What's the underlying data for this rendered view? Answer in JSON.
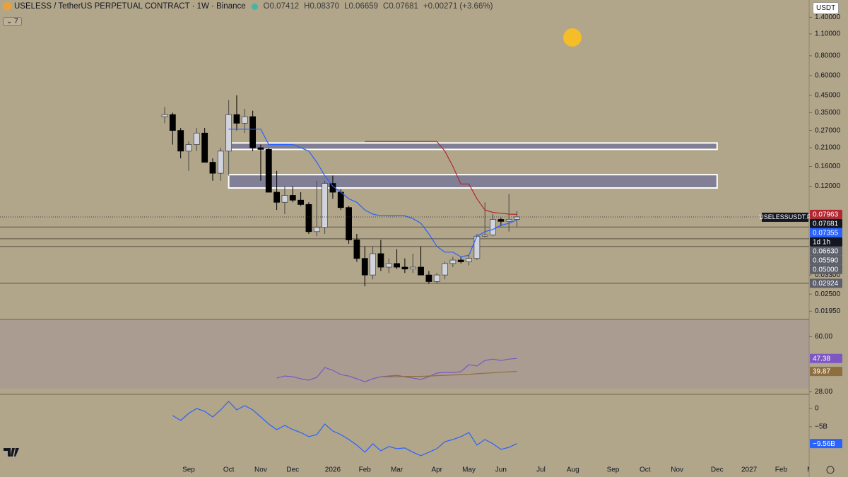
{
  "header": {
    "ohlc": [
      {
        "label": "O",
        "value": "0.07412"
      },
      {
        "label": "H",
        "value": "0.08370"
      },
      {
        "label": "L",
        "value": "0.06659"
      },
      {
        "label": "C",
        "value": "0.07681"
      }
    ],
    "change": "+0.00271 (+3.66%)",
    "currency": "USDT",
    "indicators": "7",
    "ticker": "USELESSUSDT.P",
    "countdown": "1d 1h"
  },
  "chart_data": [
    {
      "type": "candlestick",
      "title": "USELESS / TetherUS PERPETUAL CONTRACT · 1W · Binance",
      "log_scale": true,
      "ylim": [
        0.0173,
        1.8
      ],
      "yticks": [
        {
          "value": 1.4,
          "label": "1.40000"
        },
        {
          "value": 1.1,
          "label": "1.10000"
        },
        {
          "value": 0.8,
          "label": "0.80000"
        },
        {
          "value": 0.6,
          "label": "0.60000"
        },
        {
          "value": 0.45,
          "label": "0.45000"
        },
        {
          "value": 0.35,
          "label": "0.35000"
        },
        {
          "value": 0.27,
          "label": "0.27000"
        },
        {
          "value": 0.21,
          "label": "0.21000"
        },
        {
          "value": 0.16,
          "label": "0.16000"
        },
        {
          "value": 0.12,
          "label": "0.12000"
        },
        {
          "value": 0.033,
          "label": "0.03300"
        },
        {
          "value": 0.025,
          "label": "0.02500"
        },
        {
          "value": 0.0195,
          "label": "0.01950"
        }
      ],
      "categories": [
        null,
        null,
        null,
        "Sep",
        null,
        null,
        null,
        null,
        "Oct",
        null,
        null,
        null,
        "Nov",
        null,
        null,
        null,
        "Dec",
        null,
        null,
        null,
        null,
        "2026",
        null,
        null,
        null,
        "Feb",
        null,
        null,
        null,
        "Mar",
        null,
        null,
        null,
        null,
        "Apr",
        null,
        null,
        null,
        "May",
        null,
        null,
        null,
        "Jun",
        null,
        null,
        null,
        null,
        "Jul",
        null,
        null,
        null,
        "Aug",
        null,
        null,
        null,
        null,
        "Sep",
        null,
        null,
        null,
        "Oct",
        null,
        null,
        null,
        "Nov",
        null,
        null,
        null,
        null,
        "Dec",
        null,
        null,
        null,
        "2027",
        null,
        null,
        null,
        "Feb",
        null,
        null,
        null,
        "Mar"
      ],
      "open": [
        0.33,
        0.34,
        0.27,
        0.2,
        0.22,
        0.26,
        0.17,
        0.145,
        0.2,
        0.34,
        0.3,
        0.33,
        0.21,
        0.205,
        0.11,
        0.095,
        0.105,
        0.098,
        0.092,
        0.062,
        0.066,
        0.125,
        0.11,
        0.088,
        0.055,
        0.042,
        0.033,
        0.045,
        0.037,
        0.039,
        0.037,
        0.036,
        0.037,
        0.033,
        0.03,
        0.033,
        0.039,
        0.041,
        0.04,
        0.042,
        0.058,
        0.059,
        0.074,
        0.072,
        0.07412,
        null,
        null,
        null,
        null,
        null,
        null,
        null,
        null,
        null,
        null,
        null,
        null,
        null,
        null,
        null,
        null,
        null,
        null,
        null,
        null,
        null,
        null,
        null,
        null,
        null,
        null,
        null,
        null,
        null,
        null,
        null,
        null,
        null,
        null,
        null,
        null,
        null
      ],
      "high": [
        0.38,
        0.35,
        0.28,
        0.23,
        0.28,
        0.28,
        0.18,
        0.21,
        0.42,
        0.45,
        0.37,
        0.36,
        0.22,
        0.21,
        0.15,
        0.12,
        0.12,
        0.11,
        0.095,
        0.13,
        0.13,
        0.14,
        0.115,
        0.09,
        0.06,
        0.05,
        0.05,
        0.055,
        0.042,
        0.048,
        0.042,
        0.045,
        0.05,
        0.035,
        0.034,
        0.04,
        0.043,
        0.043,
        0.044,
        0.06,
        0.095,
        0.08,
        0.076,
        0.107,
        0.0837,
        null,
        null,
        null,
        null,
        null,
        null,
        null,
        null,
        null,
        null,
        null,
        null,
        null,
        null,
        null,
        null,
        null,
        null,
        null,
        null,
        null,
        null,
        null,
        null,
        null,
        null,
        null,
        null,
        null,
        null,
        null,
        null,
        null,
        null,
        null,
        null,
        null
      ],
      "low": [
        0.3,
        0.22,
        0.18,
        0.15,
        0.2,
        0.17,
        0.13,
        0.13,
        0.14,
        0.27,
        0.26,
        0.2,
        0.13,
        0.11,
        0.085,
        0.08,
        0.095,
        0.09,
        0.06,
        0.058,
        0.06,
        0.1,
        0.085,
        0.052,
        0.04,
        0.028,
        0.031,
        0.035,
        0.034,
        0.036,
        0.034,
        0.034,
        0.034,
        0.029,
        0.029,
        0.031,
        0.037,
        0.039,
        0.038,
        0.041,
        0.057,
        0.058,
        0.067,
        0.062,
        0.06659,
        null,
        null,
        null,
        null,
        null,
        null,
        null,
        null,
        null,
        null,
        null,
        null,
        null,
        null,
        null,
        null,
        null,
        null,
        null,
        null,
        null,
        null,
        null,
        null,
        null,
        null,
        null,
        null,
        null,
        null,
        null,
        null,
        null,
        null,
        null,
        null,
        null
      ],
      "close": [
        0.34,
        0.27,
        0.2,
        0.22,
        0.26,
        0.17,
        0.145,
        0.2,
        0.34,
        0.3,
        0.33,
        0.21,
        0.205,
        0.11,
        0.095,
        0.105,
        0.098,
        0.092,
        0.062,
        0.066,
        0.125,
        0.11,
        0.088,
        0.055,
        0.042,
        0.033,
        0.045,
        0.037,
        0.039,
        0.037,
        0.036,
        0.037,
        0.033,
        0.03,
        0.033,
        0.039,
        0.041,
        0.04,
        0.042,
        0.058,
        0.059,
        0.074,
        0.072,
        0.07412,
        0.07681,
        null,
        null,
        null,
        null,
        null,
        null,
        null,
        null,
        null,
        null,
        null,
        null,
        null,
        null,
        null,
        null,
        null,
        null,
        null,
        null,
        null,
        null,
        null,
        null,
        null,
        null,
        null,
        null,
        null,
        null,
        null,
        null,
        null,
        null,
        null,
        null,
        null
      ],
      "up_color": "#d1d4dc",
      "down_color": "#000000",
      "series": [
        {
          "color": "#2962ff",
          "values": [
            null,
            null,
            null,
            null,
            null,
            null,
            null,
            null,
            0.275,
            0.275,
            0.275,
            0.275,
            0.275,
            0.22,
            0.22,
            0.22,
            0.22,
            0.21,
            0.2,
            0.17,
            0.14,
            0.12,
            0.11,
            0.1,
            0.095,
            0.085,
            0.08,
            0.078,
            0.078,
            0.078,
            0.078,
            0.075,
            0.07,
            0.06,
            0.05,
            0.046,
            0.046,
            0.043,
            0.044,
            0.058,
            0.062,
            0.064,
            0.068,
            0.07,
            0.07355,
            null,
            null,
            null,
            null,
            null,
            null,
            null,
            null,
            null,
            null,
            null,
            null,
            null,
            null,
            null,
            null,
            null,
            null,
            null,
            null,
            null,
            null,
            null,
            null,
            null,
            null,
            null,
            null,
            null,
            null,
            null,
            null,
            null,
            null,
            null,
            null,
            null
          ]
        },
        {
          "color": "#b22833",
          "values": [
            null,
            null,
            null,
            null,
            null,
            null,
            null,
            null,
            null,
            null,
            null,
            null,
            null,
            null,
            null,
            null,
            null,
            null,
            null,
            null,
            null,
            null,
            null,
            null,
            null,
            0.23,
            0.23,
            0.23,
            0.23,
            0.23,
            0.23,
            0.23,
            0.23,
            0.23,
            0.23,
            0.2,
            0.16,
            0.124,
            0.124,
            0.1,
            0.085,
            0.082,
            0.081,
            0.08,
            0.07963,
            null,
            null,
            null,
            null,
            null,
            null,
            null,
            null,
            null,
            null,
            null,
            null,
            null,
            null,
            null,
            null,
            null,
            null,
            null,
            null,
            null,
            null,
            null,
            null,
            null,
            null,
            null,
            null,
            null,
            null,
            null,
            null,
            null,
            null,
            null,
            null,
            null
          ]
        }
      ],
      "zones": [
        {
          "low": 0.205,
          "high": 0.225,
          "start": 8,
          "end": 69
        },
        {
          "low": 0.117,
          "high": 0.142,
          "start": 8,
          "end": 69
        }
      ],
      "levels": [
        {
          "value": 0.0663,
          "label": "0.06630"
        },
        {
          "value": 0.0559,
          "label": "0.05590"
        },
        {
          "value": 0.05,
          "label": "0.05000"
        },
        {
          "value": 0.02924,
          "label": "0.02924"
        }
      ]
    },
    {
      "type": "line",
      "ylim": [
        27,
        70
      ],
      "yticks": [
        {
          "value": 60,
          "label": "60.00"
        },
        {
          "value": 28,
          "label": "28.00"
        }
      ],
      "band": [
        30,
        70
      ],
      "series": [
        {
          "color": "#7e57c2",
          "values": [
            null,
            null,
            null,
            null,
            null,
            null,
            null,
            null,
            null,
            null,
            null,
            null,
            null,
            null,
            36.0,
            37.2,
            36.8,
            35.6,
            34.8,
            36.4,
            42.1,
            40.5,
            38.0,
            37.2,
            35.6,
            33.9,
            35.6,
            36.8,
            37.2,
            37.6,
            36.8,
            36.0,
            35.2,
            36.8,
            38.9,
            39.3,
            39.3,
            39.7,
            43.8,
            43.0,
            46.2,
            47.0,
            46.2,
            47.0,
            47.38,
            null,
            null,
            null,
            null,
            null,
            null,
            null,
            null,
            null,
            null,
            null,
            null,
            null,
            null,
            null,
            null,
            null,
            null,
            null,
            null,
            null,
            null,
            null,
            null,
            null,
            null,
            null,
            null,
            null,
            null,
            null,
            null,
            null,
            null,
            null,
            null,
            null
          ]
        },
        {
          "color": "#8d6e3f",
          "values": [
            null,
            null,
            null,
            null,
            null,
            null,
            null,
            null,
            null,
            null,
            null,
            null,
            null,
            null,
            null,
            null,
            null,
            null,
            null,
            null,
            null,
            null,
            null,
            null,
            null,
            null,
            null,
            36.8,
            36.8,
            36.8,
            37.0,
            37.0,
            37.0,
            37.2,
            37.4,
            37.6,
            37.8,
            38.0,
            38.2,
            38.5,
            38.8,
            39.1,
            39.4,
            39.6,
            39.87,
            null,
            null,
            null,
            null,
            null,
            null,
            null,
            null,
            null,
            null,
            null,
            null,
            null,
            null,
            null,
            null,
            null,
            null,
            null,
            null,
            null,
            null,
            null,
            null,
            null,
            null,
            null,
            null,
            null,
            null,
            null,
            null,
            null,
            null,
            null,
            null,
            null
          ]
        }
      ]
    },
    {
      "type": "line",
      "ylim": [
        -15.4,
        3.85
      ],
      "yticks": [
        0,
        {
          "value": -5,
          "label": "−5B"
        }
      ],
      "series": [
        {
          "color": "#2962ff",
          "values": [
            null,
            -1.92,
            -3.27,
            -1.35,
            0,
            -0.77,
            -2.31,
            -0.38,
            1.92,
            -0.38,
            0.77,
            -0.38,
            -2.31,
            -4.23,
            -5.77,
            -4.62,
            -5.77,
            -6.54,
            -7.69,
            -7.12,
            -4.23,
            -6.15,
            -7.12,
            -8.46,
            -10,
            -11.92,
            -9.62,
            -11.54,
            -10.38,
            -10.96,
            -10.77,
            -11.92,
            -12.88,
            -11.92,
            -10.96,
            -9.04,
            -8.46,
            -7.69,
            -6.54,
            -10,
            -8.46,
            -9.62,
            -11.15,
            -10.58,
            -9.56,
            null,
            null,
            null,
            null,
            null,
            null,
            null,
            null,
            null,
            null,
            null,
            null,
            null,
            null,
            null,
            null,
            null,
            null,
            null,
            null,
            null,
            null,
            null,
            null,
            null,
            null,
            null,
            null,
            null,
            null,
            null,
            null,
            null,
            null,
            null,
            null,
            null
          ],
          "value_labels": [
            null,
            null,
            null,
            null,
            null,
            null,
            null,
            null,
            null,
            null,
            null,
            null,
            null,
            null,
            null,
            null,
            null,
            null,
            null,
            null,
            null,
            null,
            null,
            null,
            null,
            null,
            null,
            null,
            null,
            null,
            null,
            null,
            null,
            null,
            null,
            null,
            null,
            null,
            null,
            null,
            null,
            null,
            null,
            null,
            "−9.56B",
            null,
            null,
            null,
            null,
            null,
            null,
            null,
            null,
            null,
            null,
            null,
            null,
            null,
            null,
            null,
            null,
            null,
            null,
            null,
            null,
            null,
            null,
            null,
            null,
            null,
            null,
            null,
            null,
            null,
            null,
            null,
            null,
            null,
            null,
            null,
            null,
            null
          ]
        }
      ]
    }
  ]
}
